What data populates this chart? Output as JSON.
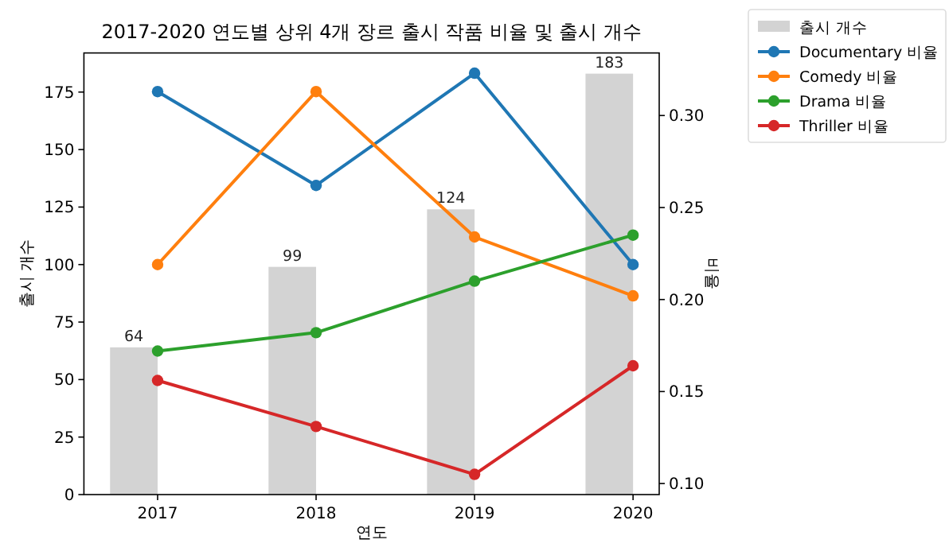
{
  "chart_data": {
    "type": "bar",
    "title": "2017-2020 연도별 상위 4개 장르 출시 작품 비율 및 출시 개수",
    "xlabel": "연도",
    "ylabel": "출시 개수",
    "y2label": "비율",
    "categories": [
      "2017",
      "2018",
      "2019",
      "2020"
    ],
    "series": [
      {
        "name": "출시 개수",
        "color": "#d3d3d3",
        "values": [
          64,
          99,
          124,
          183
        ],
        "value_labels": [
          "64",
          "99",
          "124",
          "183"
        ]
      },
      {
        "name": "Documentary 비율",
        "type": "line",
        "axis": "y2",
        "color": "#1f77b4",
        "values": [
          0.313,
          0.262,
          0.323,
          0.219
        ]
      },
      {
        "name": "Comedy 비율",
        "type": "line",
        "axis": "y2",
        "color": "#ff7f0e",
        "values": [
          0.219,
          0.313,
          0.234,
          0.202
        ]
      },
      {
        "name": "Drama 비율",
        "type": "line",
        "axis": "y2",
        "color": "#2ca02c",
        "values": [
          0.172,
          0.182,
          0.21,
          0.235
        ]
      },
      {
        "name": "Thriller 비율",
        "type": "line",
        "axis": "y2",
        "color": "#d62728",
        "values": [
          0.156,
          0.131,
          0.105,
          0.164
        ]
      }
    ],
    "ylim": [
      0,
      192
    ],
    "yticks": [
      0,
      25,
      50,
      75,
      100,
      125,
      150,
      175
    ],
    "y2lim": [
      0.094,
      0.334
    ],
    "y2ticks": [
      {
        "value": 0.1,
        "label": "0.10"
      },
      {
        "value": 0.15,
        "label": "0.15"
      },
      {
        "value": 0.2,
        "label": "0.20"
      },
      {
        "value": 0.25,
        "label": "0.25"
      },
      {
        "value": 0.3,
        "label": "0.30"
      }
    ],
    "legend": "top right",
    "marker": "circle"
  }
}
